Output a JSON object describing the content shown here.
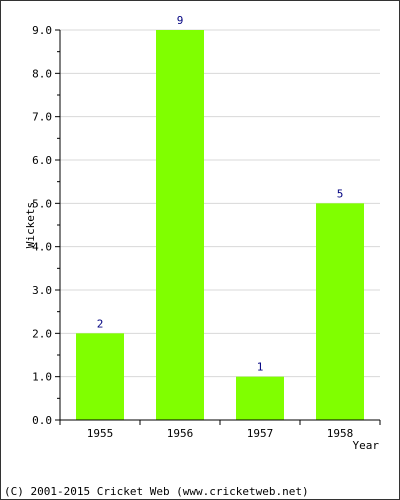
{
  "chart_data": {
    "type": "bar",
    "title": "",
    "xlabel": "Year",
    "ylabel": "Wickets",
    "categories": [
      "1955",
      "1956",
      "1957",
      "1958"
    ],
    "values": [
      2,
      9,
      1,
      5
    ],
    "data_labels": [
      "2",
      "9",
      "1",
      "5"
    ],
    "ylim": [
      0,
      9
    ],
    "yticks": [
      "0.0",
      "1.0",
      "2.0",
      "3.0",
      "4.0",
      "5.0",
      "6.0",
      "7.0",
      "8.0",
      "9.0"
    ],
    "grid": true,
    "legend": "none",
    "colors": {
      "bar": "#80ff00",
      "grid": "#d8d8d8",
      "axis": "#000000",
      "data_label": "#000080",
      "frame": "#333333"
    }
  },
  "footer": {
    "copyright": "(C) 2001-2015 Cricket Web (www.cricketweb.net)"
  }
}
